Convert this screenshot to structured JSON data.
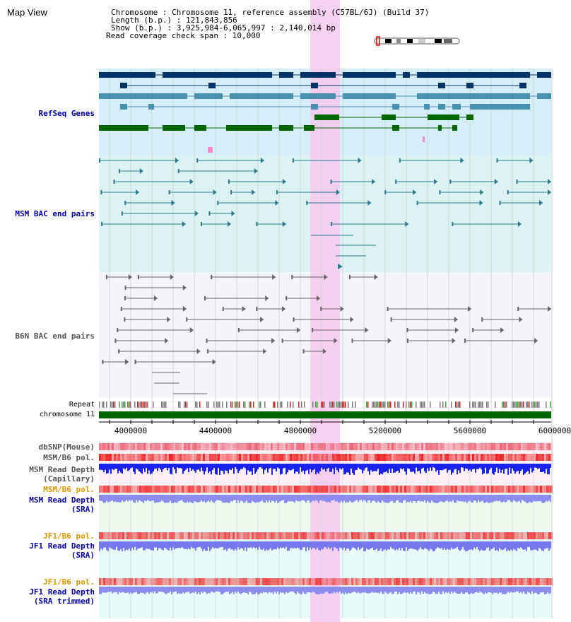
{
  "page": {
    "title": "Map View"
  },
  "header": {
    "line1": "Chromosome      : Chromosome 11, reference assembly (C57BL/6J) (Build 37)",
    "line2": "Length (b.p.) : 121,843,856",
    "line3": " Show (b.p.) : 3,925,984-6,065,997 : 2,140,014 bp",
    "line4": "Read coverage check span : 10,000"
  },
  "tracks": {
    "refseq": "RefSeq Genes",
    "msm_bac": "MSM BAC end pairs",
    "b6n_bac": "B6N BAC end pairs",
    "repeat": "Repeat",
    "chromosome": "chromosome 11",
    "dbsnp": "dbSNP(Mouse)",
    "msm_b6_pol_1": "MSM/B6 pol.",
    "msm_depth_cap": "MSM Read Depth\n(Capillary)",
    "msm_b6_pol_2": "MSM/B6 pol.",
    "msm_depth_sra": "MSM Read Depth\n(SRA)",
    "jf1_b6_pol_1": "JF1/B6 pol.",
    "jf1_depth_sra": "JF1 Read Depth\n(SRA)",
    "jf1_b6_pol_2": "JF1/B6 pol.",
    "jf1_depth_trim": "JF1 Read Depth\n(SRA trimmed)"
  },
  "axis": {
    "ticks": [
      "4000000",
      "4400000",
      "4800000",
      "5200000",
      "5600000",
      "6000000"
    ]
  },
  "colors": {
    "label_blue": "#0000aa",
    "label_orange": "#dd9900",
    "highlight": "#f7c8ee",
    "refseq_bg": "#d6eefa",
    "msm_bg": "#ddf3f3",
    "b6n_bg": "#f4f4fa",
    "chromosome_bar": "#006600"
  }
}
